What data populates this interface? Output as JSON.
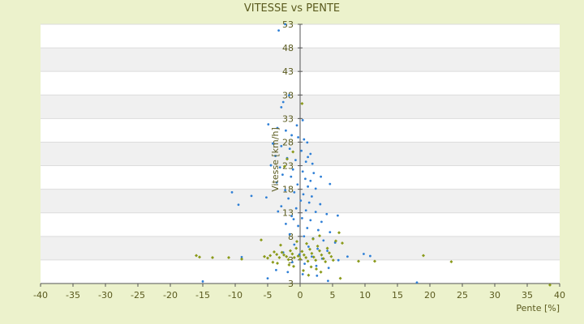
{
  "chart_data": {
    "type": "scatter",
    "title": "VITESSE vs PENTE",
    "xlabel": "Pente [%]",
    "ylabel": "Vitesse [km/h]",
    "xlim": [
      -40,
      40
    ],
    "ylim": [
      3,
      53
    ],
    "x_ticks": [
      -40,
      -35,
      -30,
      -25,
      -20,
      -15,
      -10,
      -5,
      0,
      5,
      10,
      15,
      20,
      25,
      30,
      35,
      40
    ],
    "x_tick_labels": [
      "-40",
      "-35",
      "-30",
      "-25",
      "-20",
      "-15",
      "-10",
      "-5",
      "0",
      "5",
      "10",
      "15",
      "20",
      "25",
      "30",
      "35",
      "40"
    ],
    "y_tick_labels": [
      "53",
      "48",
      "43",
      "38",
      "33",
      "28",
      "23",
      "18",
      "13",
      "8",
      "3",
      "3"
    ],
    "grid": "horizontal bands",
    "legend": "none",
    "series": [
      {
        "color": "#2e7fd6",
        "marker": "dot",
        "points": [
          [
            -3.3,
            51.8
          ],
          [
            -2.3,
            53.0
          ],
          [
            -2.6,
            38.0
          ],
          [
            -1.7,
            39.3
          ],
          [
            0.4,
            34.5
          ],
          [
            -0.5,
            33.5
          ],
          [
            -4.9,
            33.7
          ],
          [
            -3.5,
            33.0
          ],
          [
            -2.2,
            32.5
          ],
          [
            -1.3,
            31.6
          ],
          [
            0.6,
            30.8
          ],
          [
            1.1,
            30.2
          ],
          [
            -4.2,
            30.0
          ],
          [
            -2.9,
            29.5
          ],
          [
            -1.6,
            29.0
          ],
          [
            0.2,
            28.6
          ],
          [
            1.6,
            28.0
          ],
          [
            -3.8,
            27.6
          ],
          [
            -2.0,
            27.2
          ],
          [
            -0.7,
            26.8
          ],
          [
            0.9,
            26.5
          ],
          [
            1.9,
            26.1
          ],
          [
            -4.5,
            25.8
          ],
          [
            -3.1,
            25.4
          ],
          [
            -1.1,
            25.0
          ],
          [
            0.4,
            24.6
          ],
          [
            2.1,
            24.3
          ],
          [
            -2.7,
            24.0
          ],
          [
            -1.4,
            23.6
          ],
          [
            0.8,
            23.2
          ],
          [
            1.6,
            22.8
          ],
          [
            -3.6,
            22.5
          ],
          [
            -0.4,
            22.1
          ],
          [
            1.2,
            21.7
          ],
          [
            2.4,
            21.3
          ],
          [
            -2.3,
            21.0
          ],
          [
            -0.9,
            20.6
          ],
          [
            0.5,
            20.2
          ],
          [
            1.8,
            19.8
          ],
          [
            -1.8,
            19.4
          ],
          [
            0.1,
            19.0
          ],
          [
            1.4,
            18.6
          ],
          [
            3.1,
            18.3
          ],
          [
            -2.9,
            17.9
          ],
          [
            -0.6,
            17.5
          ],
          [
            0.9,
            17.1
          ],
          [
            2.4,
            16.8
          ],
          [
            4.1,
            16.4
          ],
          [
            -1.3,
            16.0
          ],
          [
            0.3,
            15.6
          ],
          [
            1.6,
            15.2
          ],
          [
            3.3,
            14.9
          ],
          [
            -2.2,
            14.5
          ],
          [
            -0.3,
            14.1
          ],
          [
            1.1,
            13.7
          ],
          [
            2.8,
            13.3
          ],
          [
            4.6,
            12.9
          ],
          [
            -1.6,
            12.5
          ],
          [
            0.6,
            12.1
          ],
          [
            2.0,
            11.7
          ],
          [
            3.6,
            11.3
          ],
          [
            5.4,
            10.9
          ],
          [
            -0.9,
            10.5
          ],
          [
            1.3,
            10.1
          ],
          [
            2.7,
            9.7
          ],
          [
            4.2,
            9.3
          ],
          [
            -2.6,
            9.0
          ],
          [
            -0.1,
            8.6
          ],
          [
            1.8,
            8.2
          ],
          [
            3.4,
            7.8
          ],
          [
            5.9,
            7.5
          ],
          [
            -1.2,
            7.1
          ],
          [
            0.7,
            6.8
          ],
          [
            2.5,
            6.4
          ],
          [
            4.4,
            6.0
          ],
          [
            -3.7,
            5.6
          ],
          [
            -1.9,
            5.2
          ],
          [
            0.4,
            4.8
          ],
          [
            2.6,
            4.5
          ],
          [
            -10.5,
            20.6
          ],
          [
            -9.5,
            18.2
          ],
          [
            -7.5,
            19.9
          ],
          [
            -5.2,
            19.6
          ],
          [
            -15.0,
            3.4
          ],
          [
            -5.0,
            4.0
          ],
          [
            4.3,
            3.5
          ],
          [
            18.0,
            3.2
          ],
          [
            9.8,
            8.7
          ],
          [
            -9.0,
            8.1
          ],
          [
            10.8,
            8.3
          ],
          [
            7.3,
            8.2
          ],
          [
            -2.9,
            37.0
          ],
          [
            3.2,
            23.6
          ],
          [
            4.6,
            22.2
          ],
          [
            5.8,
            16.1
          ],
          [
            1.2,
            27.4
          ],
          [
            -0.3,
            31.2
          ],
          [
            -3.4,
            16.9
          ],
          [
            -1.0,
            15.4
          ]
        ]
      },
      {
        "color": "#8a9a1a",
        "marker": "diamond",
        "points": [
          [
            0.3,
            37.7
          ],
          [
            -16.0,
            8.4
          ],
          [
            -15.5,
            8.1
          ],
          [
            -13.5,
            8.0
          ],
          [
            -11.0,
            8.0
          ],
          [
            -9.0,
            7.7
          ],
          [
            -5.5,
            8.2
          ],
          [
            -5.0,
            7.9
          ],
          [
            -4.6,
            8.4
          ],
          [
            -4.0,
            9.1
          ],
          [
            -3.6,
            8.6
          ],
          [
            -3.2,
            8.0
          ],
          [
            -2.8,
            9.0
          ],
          [
            -2.5,
            8.5
          ],
          [
            -2.1,
            8.2
          ],
          [
            -1.8,
            7.6
          ],
          [
            -1.5,
            9.3
          ],
          [
            -1.2,
            8.7
          ],
          [
            -0.9,
            8.0
          ],
          [
            -0.6,
            9.8
          ],
          [
            -0.3,
            8.3
          ],
          [
            0.0,
            7.7
          ],
          [
            0.3,
            9.2
          ],
          [
            0.6,
            8.5
          ],
          [
            0.9,
            8.0
          ],
          [
            1.2,
            7.3
          ],
          [
            1.5,
            9.6
          ],
          [
            1.8,
            8.8
          ],
          [
            2.1,
            8.1
          ],
          [
            2.4,
            7.5
          ],
          [
            2.7,
            10.2
          ],
          [
            3.0,
            9.3
          ],
          [
            3.3,
            8.5
          ],
          [
            3.6,
            7.8
          ],
          [
            3.9,
            7.2
          ],
          [
            4.2,
            9.8
          ],
          [
            4.5,
            8.9
          ],
          [
            4.8,
            8.2
          ],
          [
            5.1,
            7.5
          ],
          [
            5.5,
            11.2
          ],
          [
            6.0,
            12.8
          ],
          [
            6.5,
            10.8
          ],
          [
            -2.0,
            27.0
          ],
          [
            -2.4,
            25.6
          ],
          [
            -1.1,
            28.4
          ],
          [
            -3.0,
            10.4
          ],
          [
            -0.5,
            11.1
          ],
          [
            1.0,
            10.7
          ],
          [
            2.0,
            11.6
          ],
          [
            3.0,
            12.2
          ],
          [
            -4.2,
            7.1
          ],
          [
            -1.7,
            6.6
          ],
          [
            1.7,
            6.2
          ],
          [
            2.5,
            5.8
          ],
          [
            3.2,
            5.2
          ],
          [
            6.2,
            4.0
          ],
          [
            9.0,
            7.3
          ],
          [
            11.5,
            7.3
          ],
          [
            19.0,
            8.4
          ],
          [
            23.3,
            7.2
          ],
          [
            38.5,
            2.7
          ],
          [
            -6.0,
            11.4
          ],
          [
            -3.5,
            6.9
          ],
          [
            -1.0,
            6.3
          ],
          [
            0.5,
            5.5
          ],
          [
            1.3,
            4.6
          ]
        ]
      }
    ]
  }
}
